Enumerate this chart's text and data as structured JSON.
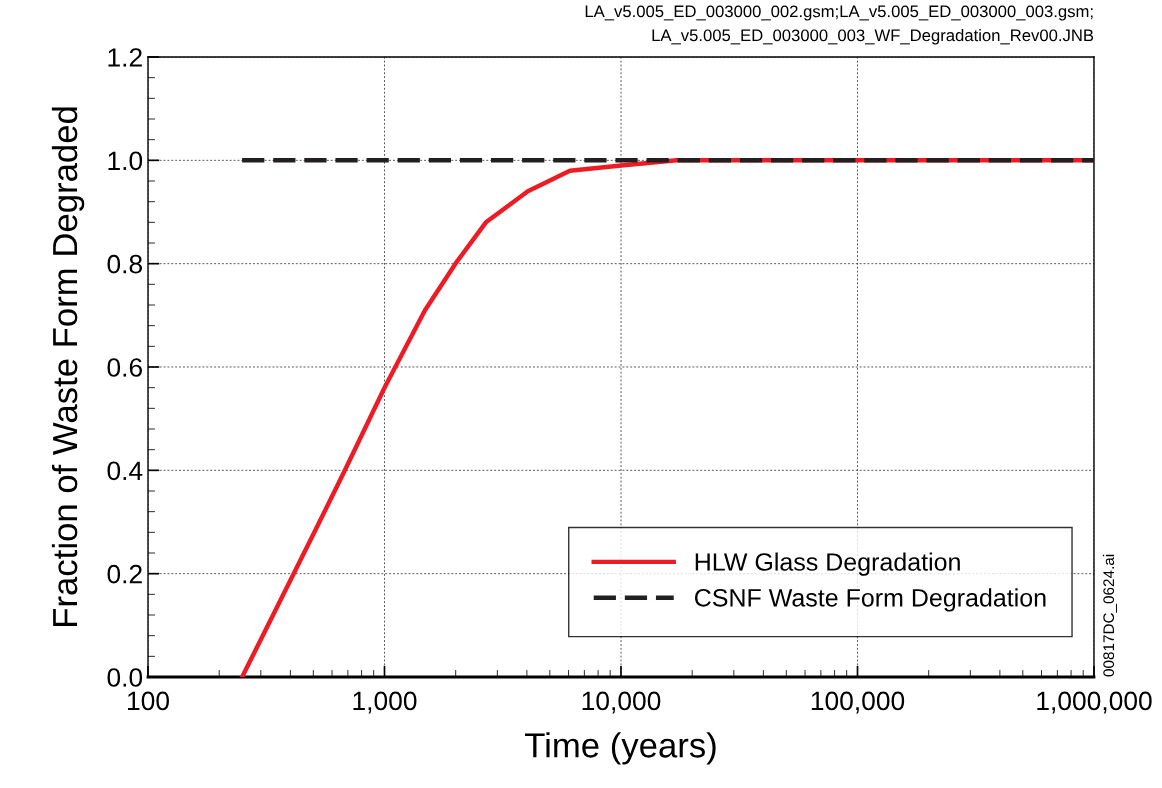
{
  "chart_data": {
    "type": "line",
    "xlabel": "Time (years)",
    "ylabel": "Fraction of Waste Form Degraded",
    "annotations": [
      "LA_v5.005_ED_003000_002.gsm;LA_v5.005_ED_003000_003.gsm;\nLA_v5.005_ED_003000_003_WF_Degradation_Rev00.JNB",
      "00817DC_0624.ai"
    ],
    "log": "x",
    "xlim": [
      100,
      1000000
    ],
    "xticks": [
      {
        "value": 100,
        "label": "100"
      },
      {
        "value": 1000,
        "label": "1,000"
      },
      {
        "value": 10000,
        "label": "10,000"
      },
      {
        "value": 100000,
        "label": "100,000"
      },
      {
        "value": 1000000,
        "label": "1,000,000"
      }
    ],
    "ylim": [
      0,
      1.2
    ],
    "yticks": [
      {
        "value": 0,
        "label": "0.0"
      },
      {
        "value": 0.2,
        "label": "0.2"
      },
      {
        "value": 0.4,
        "label": "0.4"
      },
      {
        "value": 0.6,
        "label": "0.6"
      },
      {
        "value": 0.8,
        "label": "0.8"
      },
      {
        "value": 1,
        "label": "1.0"
      },
      {
        "value": 1.2,
        "label": "1.2"
      }
    ],
    "grid": true,
    "legend": "bottom right",
    "series": [
      {
        "name": "CSNF Waste Form Degradation",
        "color": "#231f20",
        "line_style": "dashed",
        "x": [
          250,
          1000000
        ],
        "values": [
          1.0,
          1.0
        ]
      },
      {
        "name": "HLW Glass Degradation",
        "color": "#ed1c24",
        "line_style": "solid",
        "x": [
          250,
          505,
          680,
          1000,
          1483,
          1995,
          2684,
          4037,
          6080,
          10000,
          17200,
          1000000
        ],
        "values": [
          0,
          0.28,
          0.4,
          0.56,
          0.71,
          0.8,
          0.88,
          0.94,
          0.98,
          0.99,
          1.0,
          1.0
        ]
      }
    ]
  }
}
